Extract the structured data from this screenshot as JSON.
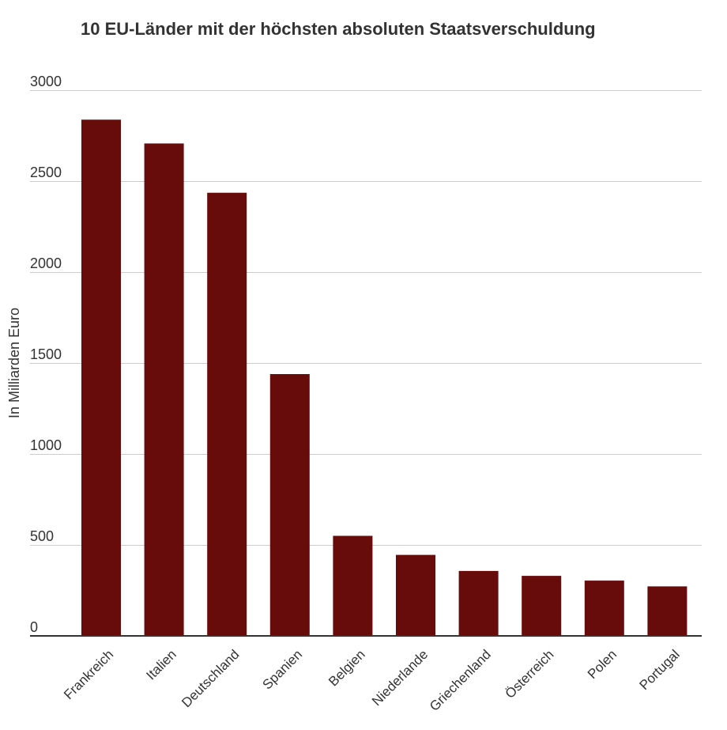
{
  "chart_data": {
    "type": "bar",
    "title": "10 EU-Länder mit der höchsten absoluten Staatsverschuldung",
    "xlabel": "",
    "ylabel": "In Milliarden Euro",
    "ylim": [
      0,
      3000
    ],
    "yticks": [
      "0",
      "500",
      "1000",
      "1500",
      "2000",
      "2500",
      "3000"
    ],
    "grid": true,
    "categories": [
      "Frankreich",
      "Italien",
      "Deutschland",
      "Spanien",
      "Belgien",
      "Niederlande",
      "Griechenland",
      "Österreich",
      "Polen",
      "Portugal"
    ],
    "values": [
      2838,
      2707,
      2436,
      1439,
      550,
      445,
      357,
      330,
      304,
      272
    ],
    "bar_color": "#680b0b",
    "grid_color": "#cccccc",
    "axis_color": "#333333",
    "text_color": "#333333"
  }
}
